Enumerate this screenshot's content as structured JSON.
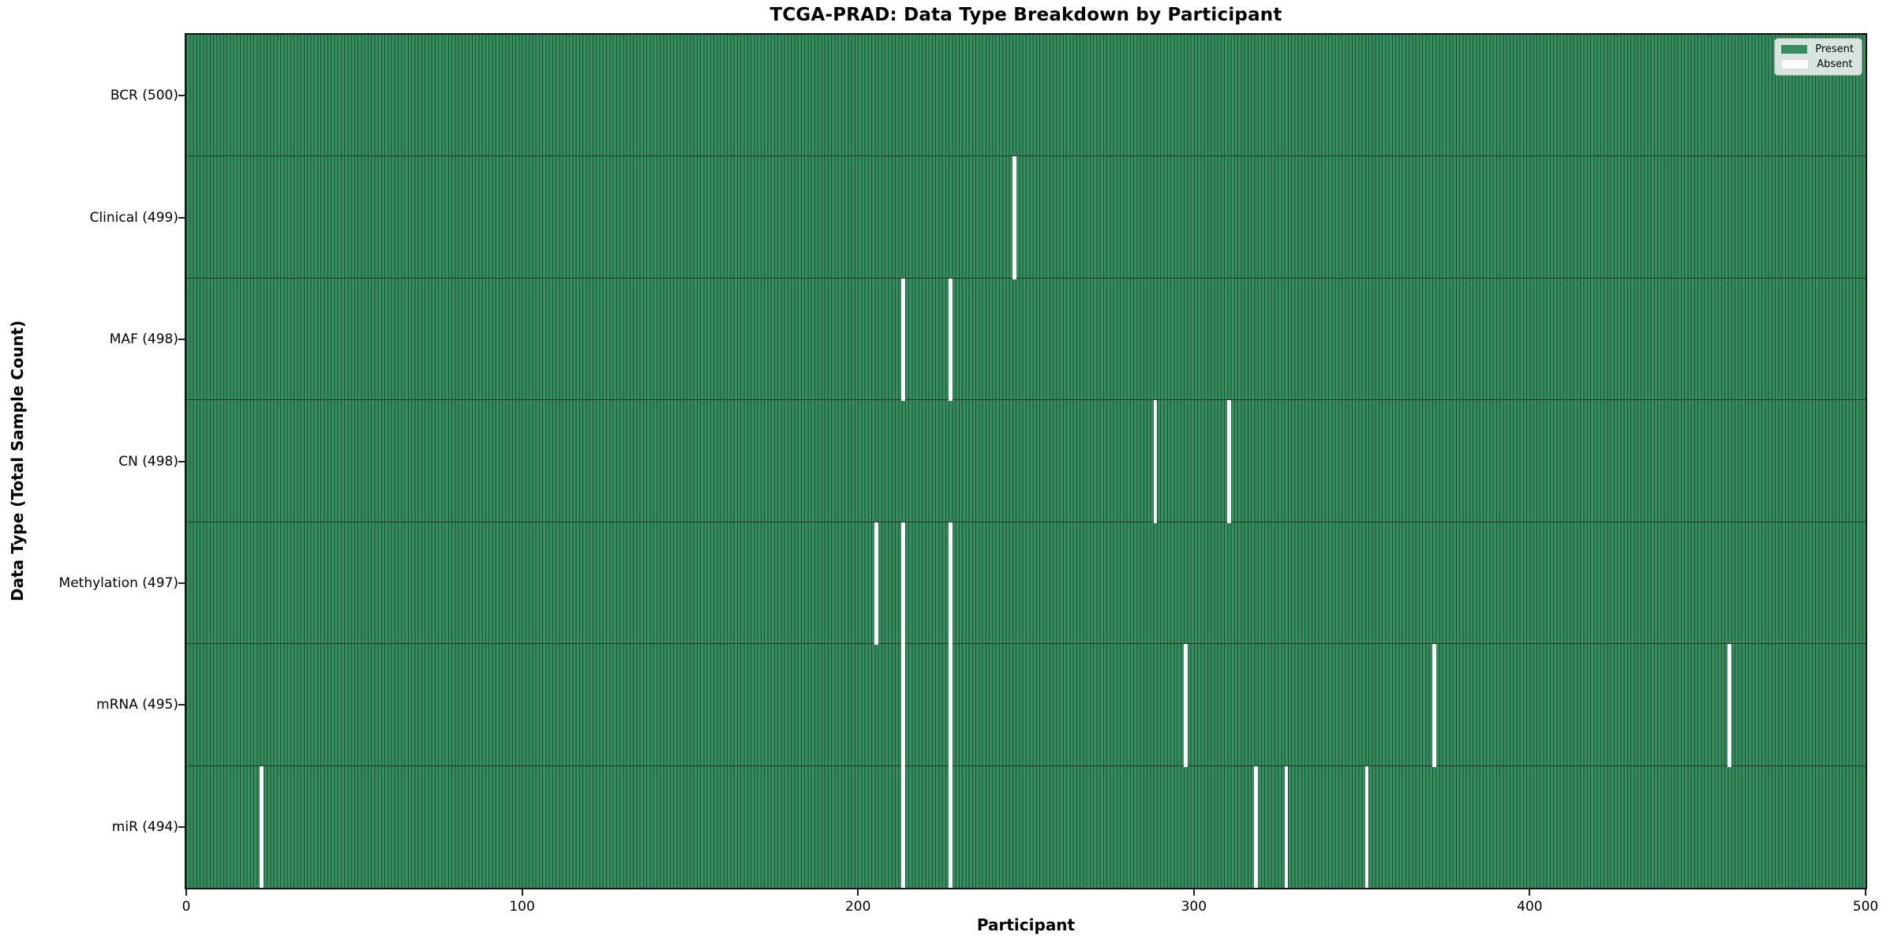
{
  "chart_data": {
    "type": "heatmap",
    "title": "TCGA-PRAD: Data Type Breakdown by Participant",
    "xlabel": "Participant",
    "ylabel": "Data Type (Total Sample Count)",
    "x_ticks": [
      0,
      100,
      200,
      300,
      400,
      500
    ],
    "xlim": [
      0,
      500
    ],
    "n_participants": 500,
    "grid": false,
    "legend": {
      "position": "upper right",
      "entries": [
        {
          "label": "Present",
          "value": "present"
        },
        {
          "label": "Absent",
          "value": "absent"
        }
      ]
    },
    "rows": [
      {
        "label": "BCR (500)",
        "data_type": "BCR",
        "total_samples": 500,
        "absent_participants": []
      },
      {
        "label": "Clinical (499)",
        "data_type": "Clinical",
        "total_samples": 499,
        "absent_participants": [
          246
        ]
      },
      {
        "label": "MAF (498)",
        "data_type": "MAF",
        "total_samples": 498,
        "absent_participants": [
          213,
          227
        ]
      },
      {
        "label": "CN (498)",
        "data_type": "CN",
        "total_samples": 498,
        "absent_participants": [
          288,
          310
        ]
      },
      {
        "label": "Methylation (497)",
        "data_type": "Methylation",
        "total_samples": 497,
        "absent_participants": [
          205,
          213,
          227
        ]
      },
      {
        "label": "mRNA (495)",
        "data_type": "mRNA",
        "total_samples": 495,
        "absent_participants": [
          213,
          227,
          297,
          371,
          459
        ]
      },
      {
        "label": "miR (494)",
        "data_type": "miR",
        "total_samples": 494,
        "absent_participants": [
          22,
          213,
          227,
          318,
          327,
          351
        ]
      }
    ],
    "colors": {
      "present_fill": "#368D5E",
      "bar_edge": "#1E5238",
      "row_divider": "#1b3526",
      "absent": "#ffffff",
      "spine": "#111111",
      "legend_bg": "#fcfcfc"
    }
  }
}
